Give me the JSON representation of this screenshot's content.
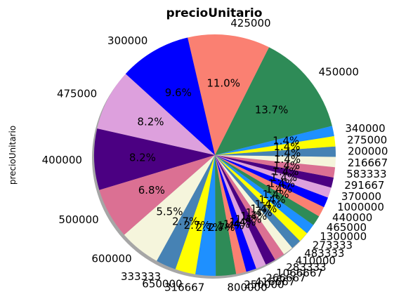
{
  "chart_data": {
    "type": "pie",
    "title": "precioUnitario",
    "ylabel": "precioUnitario",
    "shadow": true,
    "slices": [
      {
        "label": "450000",
        "pct": "13.7%",
        "value": 13.7,
        "color": "#2e8b57"
      },
      {
        "label": "425000",
        "pct": "11.0%",
        "value": 11.0,
        "color": "#fa8072"
      },
      {
        "label": "300000",
        "pct": "9.6%",
        "value": 9.6,
        "color": "#0000ff"
      },
      {
        "label": "475000",
        "pct": "8.2%",
        "value": 8.2,
        "color": "#dda0dd"
      },
      {
        "label": "400000",
        "pct": "8.2%",
        "value": 8.2,
        "color": "#4b0082"
      },
      {
        "label": "500000",
        "pct": "6.8%",
        "value": 6.8,
        "color": "#db7093"
      },
      {
        "label": "600000",
        "pct": "5.5%",
        "value": 5.5,
        "color": "#f5f5dc"
      },
      {
        "label": "333333",
        "pct": "2.7%",
        "value": 2.7,
        "color": "#4682b4"
      },
      {
        "label": "650000",
        "pct": "2.7%",
        "value": 2.7,
        "color": "#ffff00"
      },
      {
        "label": "316667",
        "pct": "2.7%",
        "value": 2.7,
        "color": "#1e90ff"
      },
      {
        "label": "800000",
        "pct": "2.7%",
        "value": 2.7,
        "color": "#2e8b57"
      },
      {
        "label": "250000",
        "pct": "1.4%",
        "value": 1.37,
        "color": "#fa8072"
      },
      {
        "label": "416667",
        "pct": "1.4%",
        "value": 1.37,
        "color": "#0000ff"
      },
      {
        "label": "266667",
        "pct": "1.4%",
        "value": 1.37,
        "color": "#dda0dd"
      },
      {
        "label": "1066667",
        "pct": "1.4%",
        "value": 1.37,
        "color": "#4b0082"
      },
      {
        "label": "283333",
        "pct": "1.4%",
        "value": 1.37,
        "color": "#db7093"
      },
      {
        "label": "410000",
        "pct": "1.4%",
        "value": 1.37,
        "color": "#f5f5dc"
      },
      {
        "label": "483333",
        "pct": "1.4%",
        "value": 1.37,
        "color": "#4682b4"
      },
      {
        "label": "273333",
        "pct": "1.4%",
        "value": 1.37,
        "color": "#ffff00"
      },
      {
        "label": "1300000",
        "pct": "1.4%",
        "value": 1.37,
        "color": "#1e90ff"
      },
      {
        "label": "465000",
        "pct": "1.4%",
        "value": 1.37,
        "color": "#2e8b57"
      },
      {
        "label": "440000",
        "pct": "1.4%",
        "value": 1.37,
        "color": "#fa8072"
      },
      {
        "label": "1000000",
        "pct": "1.4%",
        "value": 1.37,
        "color": "#0000ff"
      },
      {
        "label": "370000",
        "pct": "1.4%",
        "value": 1.37,
        "color": "#dda0dd"
      },
      {
        "label": "291667",
        "pct": "1.4%",
        "value": 1.37,
        "color": "#4b0082"
      },
      {
        "label": "583333",
        "pct": "1.4%",
        "value": 1.37,
        "color": "#db7093"
      },
      {
        "label": "216667",
        "pct": "1.4%",
        "value": 1.37,
        "color": "#f5f5dc"
      },
      {
        "label": "200000",
        "pct": "1.4%",
        "value": 1.37,
        "color": "#4682b4"
      },
      {
        "label": "275000",
        "pct": "1.4%",
        "value": 1.37,
        "color": "#ffff00"
      },
      {
        "label": "340000",
        "pct": "1.4%",
        "value": 1.37,
        "color": "#1e90ff"
      }
    ]
  }
}
